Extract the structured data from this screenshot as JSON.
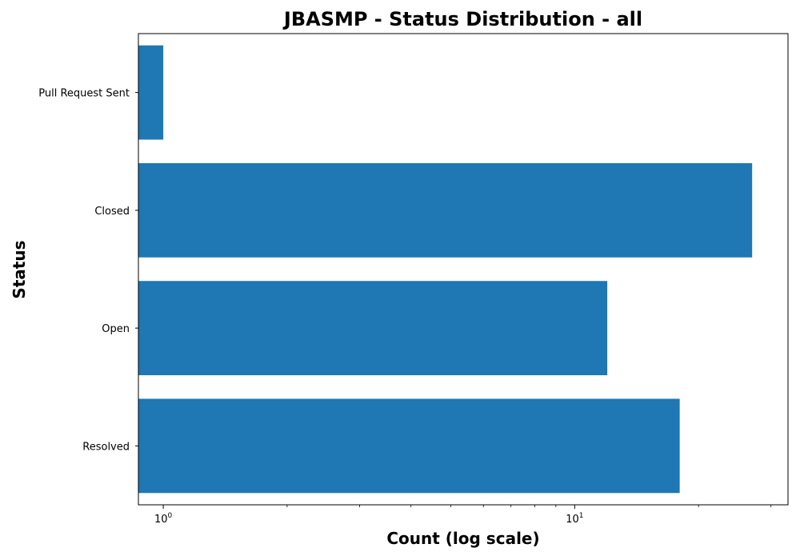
{
  "chart_data": {
    "type": "bar",
    "orientation": "horizontal",
    "title": "JBASMP - Status Distribution - all",
    "xlabel": "Count (log scale)",
    "ylabel": "Status",
    "xscale": "log",
    "xlim": [
      0.87,
      33
    ],
    "categories": [
      "Pull Request Sent",
      "Closed",
      "Open",
      "Resolved"
    ],
    "values": [
      1,
      27,
      12,
      18
    ],
    "x_ticks": [
      {
        "value": 1,
        "base": "10",
        "exp": "0"
      },
      {
        "value": 10,
        "base": "10",
        "exp": "1"
      }
    ],
    "bar_color": "#1f77b4",
    "grid": false,
    "legend": "none"
  }
}
